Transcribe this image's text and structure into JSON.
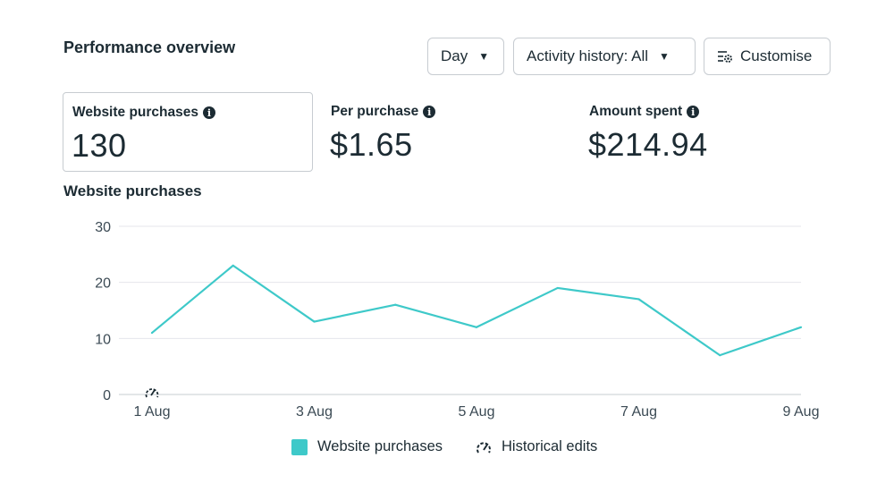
{
  "header": {
    "title": "Performance overview",
    "day_label": "Day",
    "activity_label": "Activity history: All",
    "customise_label": "Customise"
  },
  "metrics": [
    {
      "label": "Website purchases",
      "value": "130"
    },
    {
      "label": "Per purchase",
      "value": "$1.65"
    },
    {
      "label": "Amount spent",
      "value": "$214.94"
    }
  ],
  "colors": {
    "series": "#3ec9c9",
    "grid": "#e4e6eb",
    "text": "#1c2b33"
  },
  "chart_data": {
    "type": "line",
    "title": "Website purchases",
    "x": [
      "1 Aug",
      "2 Aug",
      "3 Aug",
      "4 Aug",
      "5 Aug",
      "6 Aug",
      "7 Aug",
      "8 Aug",
      "9 Aug"
    ],
    "x_tick_labels": [
      "1 Aug",
      "3 Aug",
      "5 Aug",
      "7 Aug",
      "9 Aug"
    ],
    "series": [
      {
        "name": "Website purchases",
        "values": [
          11,
          23,
          13,
          16,
          12,
          19,
          17,
          7,
          12
        ]
      }
    ],
    "y_ticks": [
      0,
      10,
      20,
      30
    ],
    "ylim": [
      0,
      30
    ],
    "grid": true,
    "legend": [
      "Website purchases",
      "Historical edits"
    ],
    "annotation_icon": "historical-edit-icon"
  }
}
